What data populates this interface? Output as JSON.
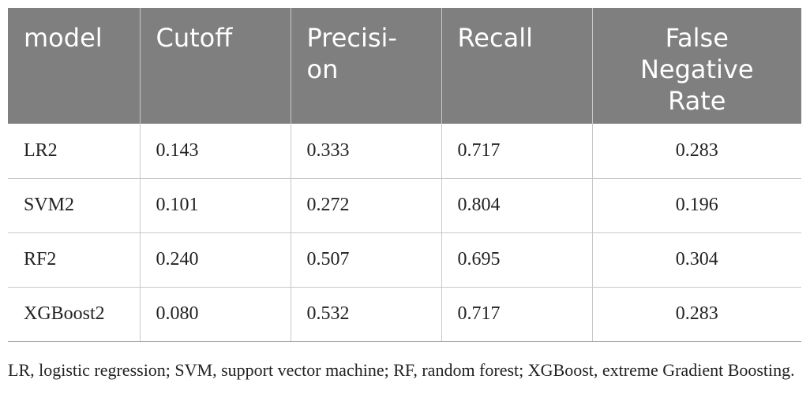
{
  "table": {
    "headers": [
      "model",
      "Cutoff",
      "Precisi-\non",
      "Recall",
      "False\nNegative\nRate"
    ],
    "rows": [
      [
        "LR2",
        "0.143",
        "0.333",
        "0.717",
        "0.283"
      ],
      [
        "SVM2",
        "0.101",
        "0.272",
        "0.804",
        "0.196"
      ],
      [
        "RF2",
        "0.240",
        "0.507",
        "0.695",
        "0.304"
      ],
      [
        "XGBoost2",
        "0.080",
        "0.532",
        "0.717",
        "0.283"
      ]
    ]
  },
  "footnote": "LR, logistic regression; SVM, support vector machine; RF, random forest; XGBoost, extreme Gradient Boosting."
}
